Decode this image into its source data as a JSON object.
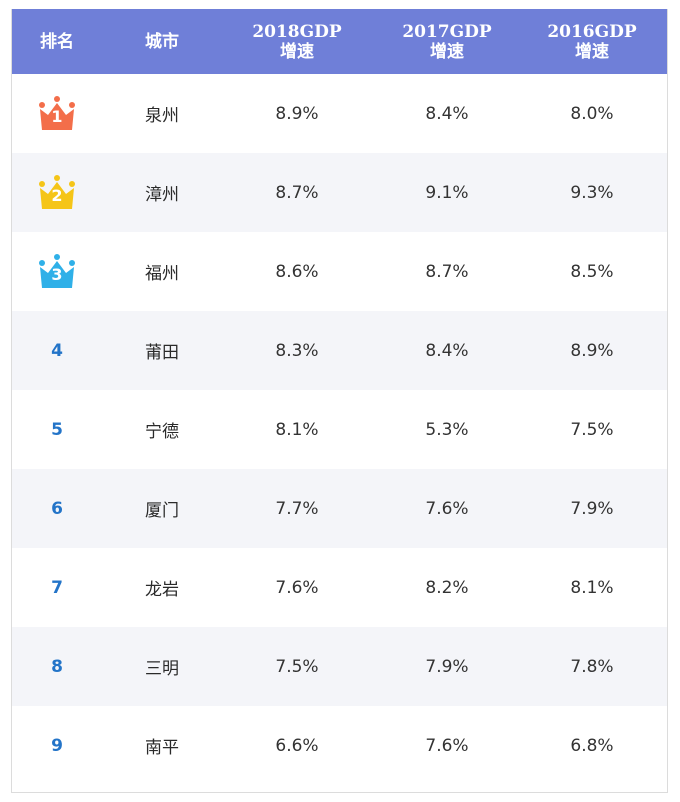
{
  "headers": {
    "rank": "排名",
    "city": "城市",
    "y2018": [
      "2018GDP",
      "增速"
    ],
    "y2017": [
      "2017GDP",
      "增速"
    ],
    "y2016": [
      "2016GDP",
      "增速"
    ]
  },
  "colors": {
    "header_bg": "#6f7fd8",
    "crown_1": "#f36e4a",
    "crown_2": "#f5c518",
    "crown_3": "#2fb0e8",
    "rank_text": "#2374c8"
  },
  "rows": [
    {
      "rank": "1",
      "city": "泉州",
      "g2018": "8.9%",
      "g2017": "8.4%",
      "g2016": "8.0%"
    },
    {
      "rank": "2",
      "city": "漳州",
      "g2018": "8.7%",
      "g2017": "9.1%",
      "g2016": "9.3%"
    },
    {
      "rank": "3",
      "city": "福州",
      "g2018": "8.6%",
      "g2017": "8.7%",
      "g2016": "8.5%"
    },
    {
      "rank": "4",
      "city": "莆田",
      "g2018": "8.3%",
      "g2017": "8.4%",
      "g2016": "8.9%"
    },
    {
      "rank": "5",
      "city": "宁德",
      "g2018": "8.1%",
      "g2017": "5.3%",
      "g2016": "7.5%"
    },
    {
      "rank": "6",
      "city": "厦门",
      "g2018": "7.7%",
      "g2017": "7.6%",
      "g2016": "7.9%"
    },
    {
      "rank": "7",
      "city": "龙岩",
      "g2018": "7.6%",
      "g2017": "8.2%",
      "g2016": "8.1%"
    },
    {
      "rank": "8",
      "city": "三明",
      "g2018": "7.5%",
      "g2017": "7.9%",
      "g2016": "7.8%"
    },
    {
      "rank": "9",
      "city": "南平",
      "g2018": "6.6%",
      "g2017": "7.6%",
      "g2016": "6.8%"
    }
  ]
}
